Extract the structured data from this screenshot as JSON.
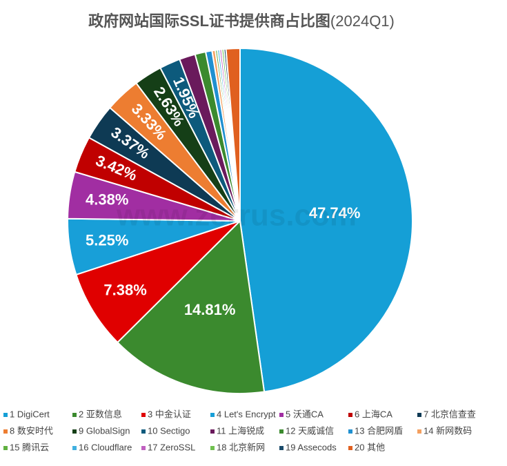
{
  "chart_data": {
    "type": "pie",
    "title": "政府网站国际SSL证书提供商占比图",
    "subtitle": "(2024Q1)",
    "watermark": "www.zerrus.com",
    "categories": [
      "1 DigiCert",
      "2 亚数信息",
      "3 中金认证",
      "4 Let's Encrypt",
      "5 沃通CA",
      "6 上海CA",
      "7 北京信查查",
      "8 数安时代",
      "9 GlobalSign",
      "10 Sectigo",
      "11 上海锐成",
      "12 天威诚信",
      "13 合肥网盾",
      "14 新网数码",
      "15 腾讯云",
      "16 Cloudflare",
      "17 ZeroSSL",
      "18 北京新网",
      "19 Assecods",
      "20 其他"
    ],
    "values": [
      47.74,
      14.81,
      7.38,
      5.25,
      4.38,
      3.42,
      3.37,
      3.33,
      2.63,
      1.95,
      1.5,
      1.0,
      0.6,
      0.3,
      0.2,
      0.2,
      0.2,
      0.2,
      0.2,
      1.3
    ],
    "value_labels": [
      "47.74%",
      "14.81%",
      "7.38%",
      "5.25%",
      "4.38%",
      "3.42%",
      "3.37%",
      "3.33%",
      "2.63%",
      "1.95%",
      null,
      null,
      null,
      null,
      null,
      null,
      null,
      null,
      null,
      null
    ],
    "colors": [
      "#159fd6",
      "#3b8a2e",
      "#e00000",
      "#189fd8",
      "#a12ea2",
      "#c00000",
      "#0e3a54",
      "#ed7d31",
      "#153f17",
      "#0d5a7c",
      "#6a1a5c",
      "#3b8a2e",
      "#2090d0",
      "#f4a060",
      "#60b040",
      "#40b0e0",
      "#c060c0",
      "#70c050",
      "#1a4a6a",
      "#e06020"
    ]
  }
}
